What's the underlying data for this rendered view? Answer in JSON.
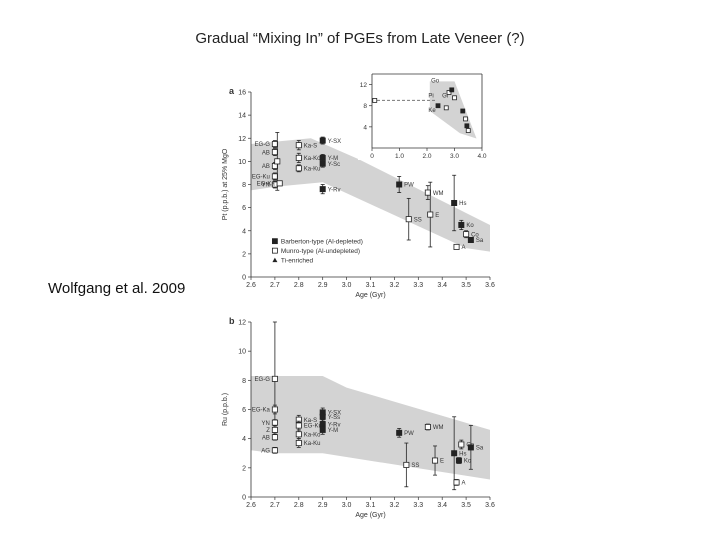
{
  "slide": {
    "title": "Gradual “Mixing In” of PGEs from Late Veneer (?)",
    "citation": "Wolfgang et al. 2009"
  },
  "colors": {
    "band": "#d3d3d3",
    "marker": "#222222",
    "axis": "#333333"
  },
  "chart_data": [
    {
      "type": "scatter",
      "panel_label": "a",
      "xlabel": "Age (Gyr)",
      "ylabel": "Pt (p.p.b.) at 25% MgO",
      "xlim": [
        2.6,
        3.6
      ],
      "ylim": [
        0,
        16
      ],
      "xticks": [
        "2.6",
        "2.7",
        "2.8",
        "2.9",
        "3.0",
        "3.1",
        "3.2",
        "3.3",
        "3.4",
        "3.5",
        "3.6"
      ],
      "yticks": [
        "0",
        "2",
        "4",
        "6",
        "8",
        "10",
        "12",
        "14",
        "16"
      ],
      "band": [
        [
          2.6,
          7.5
        ],
        [
          2.7,
          7.8
        ],
        [
          2.9,
          8.2
        ],
        [
          3.5,
          2.5
        ],
        [
          3.6,
          2.2
        ],
        [
          3.6,
          4.5
        ],
        [
          3.05,
          10.2
        ],
        [
          2.85,
          12.0
        ],
        [
          2.6,
          11.5
        ]
      ],
      "legend": [
        {
          "marker": "filled-square",
          "label": "Barberton-type (Al-depleted)"
        },
        {
          "marker": "open-square",
          "label": "Munro-type (Al-undepleted)"
        },
        {
          "marker": "filled-triangle",
          "label": "Ti-enriched"
        }
      ],
      "points": [
        {
          "x": 2.7,
          "y": 11.5,
          "err": 0.3,
          "m": "open",
          "label": "EG-G"
        },
        {
          "x": 2.7,
          "y": 10.8,
          "err": 0.3,
          "m": "open",
          "label": "AB"
        },
        {
          "x": 2.7,
          "y": 9.6,
          "err": 0.3,
          "m": "open",
          "label": "AB"
        },
        {
          "x": 2.7,
          "y": 8.7,
          "err": 0.3,
          "m": "open",
          "label": "EG-Ku"
        },
        {
          "x": 2.7,
          "y": 8.0,
          "err": 0.3,
          "m": "open",
          "label": "YN"
        },
        {
          "x": 2.71,
          "y": 10.0,
          "err": 2.5,
          "m": "open",
          "label": ""
        },
        {
          "x": 2.8,
          "y": 11.4,
          "err": 0.4,
          "m": "open",
          "label": "Ka-S"
        },
        {
          "x": 2.8,
          "y": 10.3,
          "err": 0.4,
          "m": "open",
          "label": "Ka-Ko"
        },
        {
          "x": 2.8,
          "y": 9.4,
          "err": 0.3,
          "m": "open",
          "label": "Ka-Ku"
        },
        {
          "x": 2.72,
          "y": 8.1,
          "err": 0.2,
          "m": "open",
          "label": "EG-Ka"
        },
        {
          "x": 2.9,
          "y": 11.8,
          "err": 0.3,
          "m": "filled",
          "label": "Y-SX"
        },
        {
          "x": 2.9,
          "y": 10.3,
          "err": 0.3,
          "m": "filled",
          "label": "Y-M"
        },
        {
          "x": 2.9,
          "y": 9.8,
          "err": 0.3,
          "m": "filled",
          "label": "Y-Sc"
        },
        {
          "x": 2.9,
          "y": 7.6,
          "err": 0.4,
          "m": "filled",
          "label": "Y-Rv"
        },
        {
          "x": 3.22,
          "y": 8.0,
          "err": 0.7,
          "m": "filled",
          "label": "PW"
        },
        {
          "x": 3.34,
          "y": 7.3,
          "err": 0.6,
          "m": "open",
          "label": "WM"
        },
        {
          "x": 3.26,
          "y": 5.0,
          "err": 1.8,
          "m": "open",
          "label": "SS"
        },
        {
          "x": 3.35,
          "y": 5.4,
          "err": 2.8,
          "m": "open",
          "label": "E"
        },
        {
          "x": 3.45,
          "y": 6.4,
          "err": 2.4,
          "m": "filled",
          "label": "Hs"
        },
        {
          "x": 3.48,
          "y": 4.5,
          "err": 0.4,
          "m": "filled",
          "label": "Ko"
        },
        {
          "x": 3.5,
          "y": 3.7,
          "err": 0.3,
          "m": "open",
          "label": "Co"
        },
        {
          "x": 3.52,
          "y": 3.2,
          "err": 0.2,
          "m": "filled",
          "label": "Sa"
        },
        {
          "x": 3.46,
          "y": 2.6,
          "err": 0.2,
          "m": "open",
          "label": "A"
        }
      ]
    },
    {
      "type": "scatter",
      "panel_label": "",
      "inset": true,
      "xlim": [
        0,
        4.0
      ],
      "ylim": [
        0,
        14
      ],
      "xticks": [
        "0",
        "1.0",
        "2.0",
        "3.0",
        "4.0"
      ],
      "yticks": [
        "4",
        "8",
        "12"
      ],
      "band": [
        [
          2.1,
          12.6
        ],
        [
          3.0,
          12.6
        ],
        [
          3.8,
          1.8
        ],
        [
          3.2,
          2.8
        ],
        [
          2.1,
          7.0
        ]
      ],
      "dashed_level": 9.0,
      "labels": [
        "Go",
        "Pi",
        "Ke",
        "Gi"
      ],
      "points": [
        {
          "x": 0.1,
          "y": 9.0,
          "m": "open"
        },
        {
          "x": 2.4,
          "y": 8.0,
          "m": "filled"
        },
        {
          "x": 2.8,
          "y": 10.5,
          "m": "open"
        },
        {
          "x": 2.9,
          "y": 11.0,
          "m": "filled"
        },
        {
          "x": 3.0,
          "y": 9.5,
          "m": "open"
        },
        {
          "x": 2.7,
          "y": 7.6,
          "m": "open"
        },
        {
          "x": 3.3,
          "y": 7.0,
          "m": "filled"
        },
        {
          "x": 3.4,
          "y": 5.5,
          "m": "open"
        },
        {
          "x": 3.45,
          "y": 4.2,
          "m": "filled"
        },
        {
          "x": 3.5,
          "y": 3.3,
          "m": "open"
        }
      ]
    },
    {
      "type": "scatter",
      "panel_label": "b",
      "xlabel": "Age (Gyr)",
      "ylabel": "Ru (p.p.b.)",
      "xlim": [
        2.6,
        3.6
      ],
      "ylim": [
        0,
        12
      ],
      "xticks": [
        "2.6",
        "2.7",
        "2.8",
        "2.9",
        "3.0",
        "3.1",
        "3.2",
        "3.3",
        "3.4",
        "3.5",
        "3.6"
      ],
      "yticks": [
        "0",
        "2",
        "4",
        "6",
        "8",
        "10",
        "12"
      ],
      "band": [
        [
          2.6,
          3.2
        ],
        [
          2.7,
          3.0
        ],
        [
          2.9,
          3.0
        ],
        [
          3.6,
          1.2
        ],
        [
          3.6,
          4.6
        ],
        [
          3.0,
          7.5
        ],
        [
          2.9,
          8.3
        ],
        [
          2.6,
          8.3
        ]
      ],
      "points": [
        {
          "x": 2.7,
          "y": 8.1,
          "err": 3.9,
          "m": "open",
          "label": "EG-G"
        },
        {
          "x": 2.7,
          "y": 6.0,
          "err": 0.3,
          "m": "open",
          "label": "EG-Ka"
        },
        {
          "x": 2.7,
          "y": 5.1,
          "err": 0.2,
          "m": "open",
          "label": "YN"
        },
        {
          "x": 2.7,
          "y": 4.6,
          "err": 0.2,
          "m": "open",
          "label": "Z"
        },
        {
          "x": 2.7,
          "y": 4.1,
          "err": 0.2,
          "m": "open",
          "label": "AB"
        },
        {
          "x": 2.7,
          "y": 3.2,
          "err": 0.2,
          "m": "open",
          "label": "AG"
        },
        {
          "x": 2.8,
          "y": 5.3,
          "err": 0.3,
          "m": "open",
          "label": "Ka-S"
        },
        {
          "x": 2.8,
          "y": 4.9,
          "err": 0.3,
          "m": "open",
          "label": "EG-Ku"
        },
        {
          "x": 2.8,
          "y": 4.3,
          "err": 0.3,
          "m": "open",
          "label": "Ka-Ko"
        },
        {
          "x": 2.8,
          "y": 3.7,
          "err": 0.3,
          "m": "open",
          "label": "Ka-Ku"
        },
        {
          "x": 2.9,
          "y": 5.8,
          "err": 0.3,
          "m": "filled",
          "label": "Y-SX"
        },
        {
          "x": 2.9,
          "y": 5.5,
          "err": 0.3,
          "m": "filled",
          "label": "Y-Ss"
        },
        {
          "x": 2.9,
          "y": 5.0,
          "err": 0.3,
          "m": "filled",
          "label": "Y-Rv"
        },
        {
          "x": 2.9,
          "y": 4.6,
          "err": 0.3,
          "m": "filled",
          "label": "Y-M"
        },
        {
          "x": 3.22,
          "y": 4.4,
          "err": 0.3,
          "m": "filled",
          "label": "PW"
        },
        {
          "x": 3.34,
          "y": 4.8,
          "err": 0.2,
          "m": "open",
          "label": "WM"
        },
        {
          "x": 3.25,
          "y": 2.2,
          "err": 1.5,
          "m": "open",
          "label": "SS"
        },
        {
          "x": 3.37,
          "y": 2.5,
          "err": 1.0,
          "m": "open",
          "label": "E"
        },
        {
          "x": 3.45,
          "y": 3.0,
          "err": 2.5,
          "m": "filled",
          "label": "Hs"
        },
        {
          "x": 3.47,
          "y": 2.5,
          "err": 0.2,
          "m": "filled",
          "label": "Ko"
        },
        {
          "x": 3.48,
          "y": 3.6,
          "err": 0.3,
          "m": "open",
          "label": "Co"
        },
        {
          "x": 3.52,
          "y": 3.4,
          "err": 1.5,
          "m": "filled",
          "label": "Sa"
        },
        {
          "x": 3.46,
          "y": 1.0,
          "err": 0.2,
          "m": "open",
          "label": "A"
        }
      ]
    }
  ]
}
